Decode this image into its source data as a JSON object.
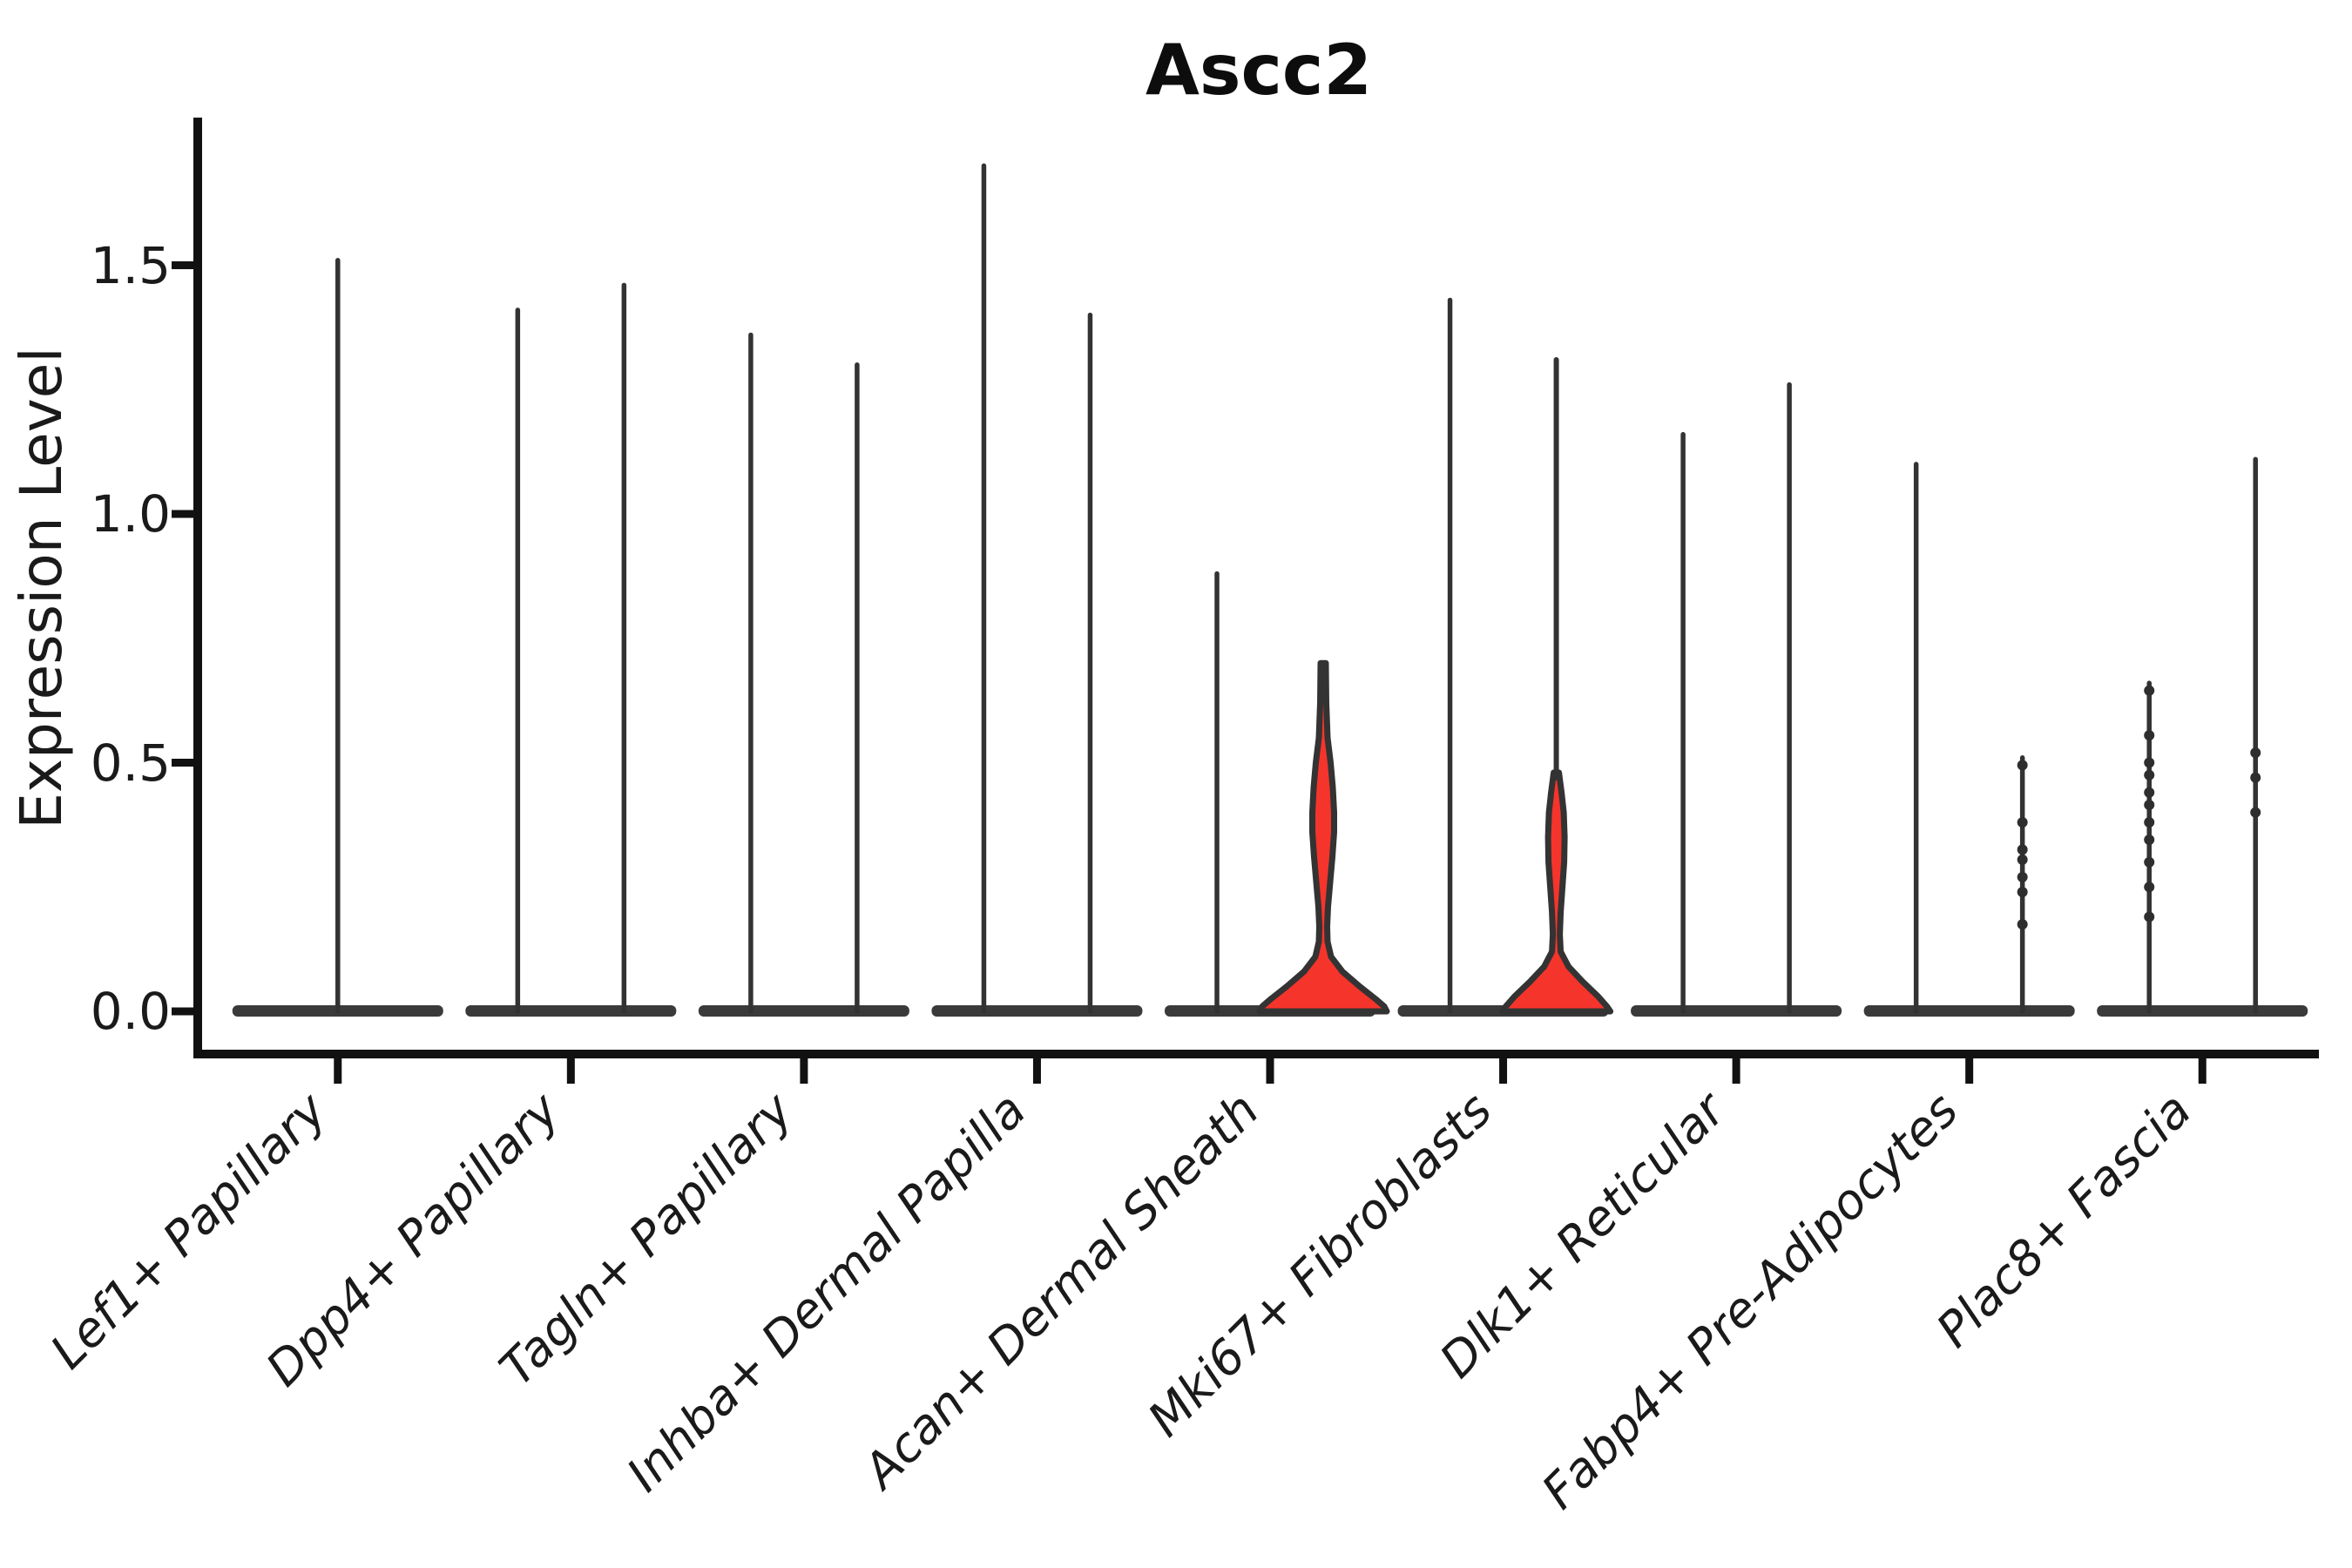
{
  "chart_data": {
    "type": "violin",
    "title": "Ascc2",
    "xlabel": "",
    "ylabel": "Expression Level",
    "ylim": [
      0,
      1.8
    ],
    "y_ticks": [
      "0.0",
      "0.5",
      "1.0",
      "1.5"
    ],
    "y_tick_values": [
      0.0,
      0.5,
      1.0,
      1.5
    ],
    "grid": false,
    "legend": "none",
    "colors": {
      "highlight_fill": "#f5342c",
      "outline": "#333333",
      "cap_bar": "#3a3a3a"
    },
    "categories": [
      {
        "label": "Lef1+ Papillary",
        "violins": [
          {
            "group": "center",
            "max_expression": 1.51,
            "style": "spike",
            "color": "black"
          }
        ]
      },
      {
        "label": "Dpp4+ Papillary",
        "violins": [
          {
            "group": "left",
            "max_expression": 1.41,
            "style": "spike",
            "color": "black"
          },
          {
            "group": "right",
            "max_expression": 1.46,
            "style": "spike",
            "color": "black"
          }
        ]
      },
      {
        "label": "Tagln+ Papillary",
        "violins": [
          {
            "group": "left",
            "max_expression": 1.36,
            "style": "spike",
            "color": "black"
          },
          {
            "group": "right",
            "max_expression": 1.3,
            "style": "spike",
            "color": "black"
          }
        ]
      },
      {
        "label": "Inhba+ Dermal Papilla",
        "violins": [
          {
            "group": "left",
            "max_expression": 1.7,
            "style": "spike",
            "color": "black"
          },
          {
            "group": "right",
            "max_expression": 1.4,
            "style": "spike",
            "color": "black"
          }
        ]
      },
      {
        "label": "Acan+ Dermal Sheath",
        "violins": [
          {
            "group": "left",
            "max_expression": 0.88,
            "style": "spike",
            "color": "black"
          },
          {
            "group": "right",
            "max_expression": 0.7,
            "style": "violin",
            "color": "red",
            "density_profile": [
              [
                0.7,
                3
              ],
              [
                0.62,
                3.5
              ],
              [
                0.55,
                5
              ],
              [
                0.5,
                8.5
              ],
              [
                0.45,
                11
              ],
              [
                0.4,
                12.5
              ],
              [
                0.36,
                12.5
              ],
              [
                0.31,
                10.5
              ],
              [
                0.26,
                8
              ],
              [
                0.21,
                5.5
              ],
              [
                0.17,
                4.5
              ],
              [
                0.14,
                5
              ],
              [
                0.11,
                9
              ],
              [
                0.08,
                22
              ],
              [
                0.05,
                42
              ],
              [
                0.025,
                60
              ],
              [
                0.01,
                70
              ],
              [
                0.0,
                73
              ]
            ]
          }
        ]
      },
      {
        "label": "Mki67+ Fibroblasts",
        "violins": [
          {
            "group": "left",
            "max_expression": 1.43,
            "style": "spike",
            "color": "black"
          },
          {
            "group": "right",
            "max_expression": 1.31,
            "style": "violin",
            "color": "red",
            "density_profile": [
              [
                0.48,
                3
              ],
              [
                0.44,
                6
              ],
              [
                0.4,
                8.5
              ],
              [
                0.35,
                9.5
              ],
              [
                0.3,
                9
              ],
              [
                0.25,
                7
              ],
              [
                0.2,
                5
              ],
              [
                0.155,
                4
              ],
              [
                0.12,
                5
              ],
              [
                0.09,
                14
              ],
              [
                0.06,
                30
              ],
              [
                0.03,
                48
              ],
              [
                0.01,
                58
              ],
              [
                0.0,
                62
              ]
            ]
          }
        ]
      },
      {
        "label": "Dlk1+ Reticular",
        "violins": [
          {
            "group": "left",
            "max_expression": 1.16,
            "style": "spike",
            "color": "black"
          },
          {
            "group": "right",
            "max_expression": 1.26,
            "style": "spike",
            "color": "black"
          }
        ]
      },
      {
        "label": "Fabp4+ Pre-Adipocytes",
        "violins": [
          {
            "group": "left",
            "max_expression": 1.1,
            "style": "spike",
            "color": "black"
          },
          {
            "group": "right",
            "max_expression": 0.51,
            "style": "dotted-spike",
            "color": "black",
            "point_values": [
              0.495,
              0.38,
              0.325,
              0.305,
              0.27,
              0.24,
              0.175
            ]
          }
        ]
      },
      {
        "label": "Plac8+ Fascia",
        "violins": [
          {
            "group": "left",
            "max_expression": 0.66,
            "style": "dotted-spike",
            "color": "black",
            "point_values": [
              0.645,
              0.555,
              0.5,
              0.475,
              0.44,
              0.415,
              0.38,
              0.345,
              0.3,
              0.25,
              0.19
            ]
          },
          {
            "group": "right",
            "max_expression": 1.11,
            "style": "dotted-spike",
            "color": "black",
            "point_values": [
              0.52,
              0.47,
              0.4
            ]
          }
        ]
      }
    ]
  }
}
